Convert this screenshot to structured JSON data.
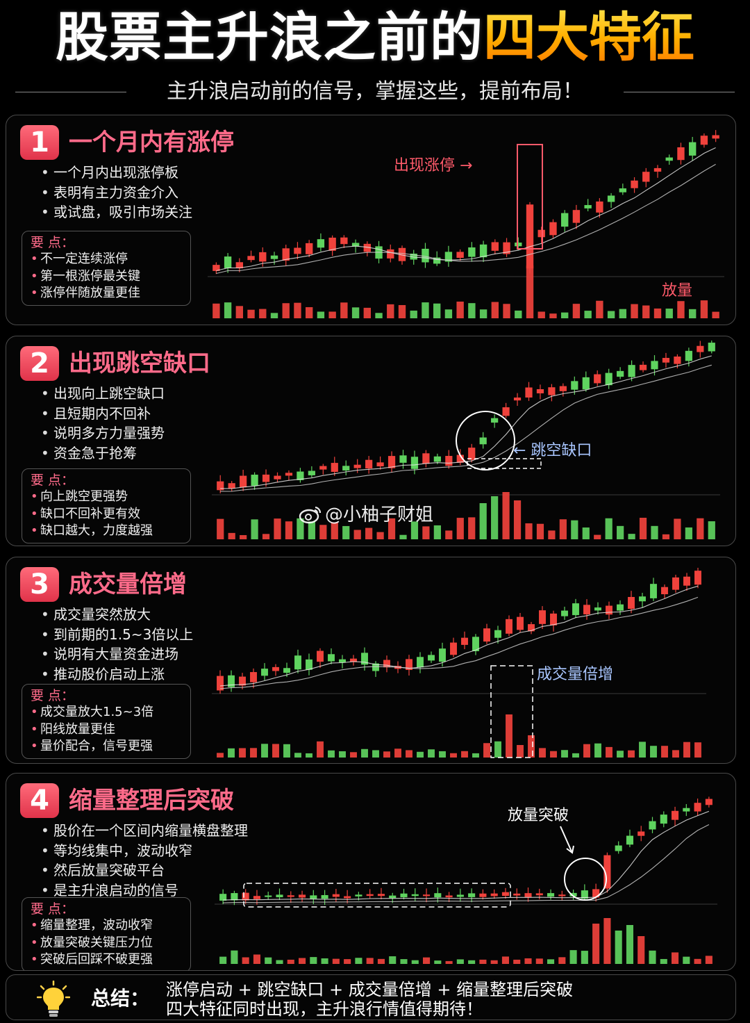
{
  "header": {
    "title_main": "股票主升浪之前的",
    "title_accent": "四大特征",
    "subtitle": "主升浪启动前的信号，掌握这些，提前布局！"
  },
  "panels": [
    {
      "number": "1",
      "title": "一个月内有涨停",
      "bullets": [
        "一个月内出现涨停板",
        "表明有主力资金介入",
        "或试盘，吸引市场关注"
      ],
      "keypoint_title": "要 点：",
      "keypoints": [
        "不一定连续涨停",
        "第一根涨停最关键",
        "涨停伴随放量更佳"
      ],
      "annotations": [
        "出现涨停 →",
        "放量"
      ]
    },
    {
      "number": "2",
      "title": "出现跳空缺口",
      "bullets": [
        "出现向上跳空缺口",
        "且短期内不回补",
        "说明多方力量强势",
        "资金急于抢筹"
      ],
      "keypoint_title": "要 点：",
      "keypoints": [
        "向上跳空更强势",
        "缺口不回补更有效",
        "缺口越大，力度越强"
      ],
      "annotations": [
        "← 跳空缺口"
      ]
    },
    {
      "number": "3",
      "title": "成交量倍增",
      "bullets": [
        "成交量突然放大",
        "到前期的1.5~3倍以上",
        "说明有大量资金进场",
        "推动股价启动上涨"
      ],
      "keypoint_title": "要 点：",
      "keypoints": [
        "成交量放大1.5~3倍",
        "阳线放量更佳",
        "量价配合，信号更强"
      ],
      "annotations": [
        "成交量倍增"
      ]
    },
    {
      "number": "4",
      "title": "缩量整理后突破",
      "bullets": [
        "股价在一个区间内缩量横盘整理",
        "等均线集中，波动收窄",
        "然后放量突破平台",
        "是主升浪启动的信号"
      ],
      "keypoint_title": "要 点：",
      "keypoints": [
        "缩量整理，波动收窄",
        "放量突破关键压力位",
        "突破后回踩不破更强"
      ],
      "annotations": [
        "放量突破"
      ]
    }
  ],
  "watermark": "@小柚子财姐",
  "summary": {
    "label": "总结：",
    "line1": "涨停启动 + 跳空缺口 + 成交量倍增 + 缩量整理后突破",
    "line2": "四大特征同时出现，主升浪行情值得期待！"
  },
  "colors": {
    "up": "#f0423c",
    "down": "#5fd35f",
    "accent_pink": "#ff6b8a",
    "accent_gold": "#ffb000"
  },
  "icons": [
    "lightbulb-icon",
    "weibo-icon"
  ]
}
